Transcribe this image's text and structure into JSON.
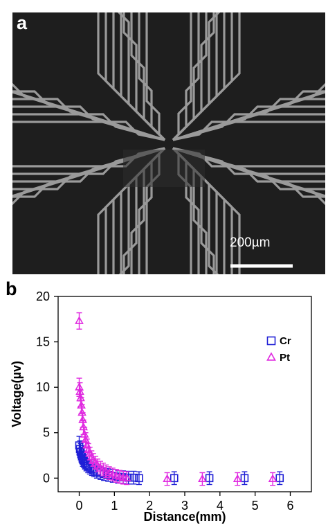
{
  "panel_a": {
    "label": "a",
    "scale_bar_label": "200µm",
    "image_kind": "microscope-photo"
  },
  "panel_b": {
    "label": "b"
  },
  "chart_data": {
    "type": "scatter",
    "xlabel": "Distance(mm)",
    "ylabel": "Voltage(µv)",
    "xlim": [
      -0.6,
      6.6
    ],
    "ylim": [
      -1.5,
      20
    ],
    "xticks": [
      0,
      1,
      2,
      3,
      4,
      5,
      6
    ],
    "yticks": [
      0,
      5,
      10,
      15,
      20
    ],
    "legend_position": "top-right",
    "grid": false,
    "series": [
      {
        "name": "Cr",
        "marker": "square",
        "color": "#1f1fd6",
        "x": [
          0.0,
          0.02,
          0.04,
          0.06,
          0.08,
          0.1,
          0.13,
          0.16,
          0.2,
          0.25,
          0.3,
          0.36,
          0.42,
          0.5,
          0.6,
          0.7,
          0.82,
          0.95,
          1.1,
          1.25,
          1.4,
          1.55,
          1.7,
          2.7,
          3.7,
          4.7,
          5.7
        ],
        "y": [
          3.6,
          3.2,
          2.9,
          2.6,
          2.4,
          2.1,
          1.9,
          1.7,
          1.5,
          1.3,
          1.15,
          1.0,
          0.85,
          0.7,
          0.55,
          0.45,
          0.35,
          0.25,
          0.15,
          0.1,
          0.05,
          0.05,
          0.0,
          0.0,
          0.0,
          0.0,
          0.0
        ],
        "error": [
          1.0,
          0.9,
          0.9,
          0.8,
          0.8,
          0.8,
          0.7,
          0.7,
          0.7,
          0.7,
          0.7,
          0.7,
          0.7,
          0.7,
          0.7,
          0.7,
          0.7,
          0.7,
          0.7,
          0.7,
          0.7,
          0.7,
          0.7,
          0.7,
          0.7,
          0.7,
          0.7
        ]
      },
      {
        "name": "Pt",
        "marker": "triangle",
        "color": "#e02ae0",
        "x": [
          0.0,
          0.0,
          0.02,
          0.04,
          0.06,
          0.08,
          0.1,
          0.12,
          0.15,
          0.18,
          0.22,
          0.26,
          0.3,
          0.35,
          0.4,
          0.46,
          0.52,
          0.6,
          0.68,
          0.76,
          0.85,
          0.95,
          1.05,
          1.15,
          1.25,
          1.35,
          2.5,
          3.5,
          4.5,
          5.5
        ],
        "y": [
          17.3,
          10.0,
          9.5,
          8.8,
          8.0,
          7.2,
          6.4,
          5.6,
          4.8,
          4.2,
          3.6,
          3.1,
          2.7,
          2.3,
          2.0,
          1.7,
          1.4,
          1.15,
          0.95,
          0.75,
          0.55,
          0.4,
          0.25,
          0.15,
          0.05,
          0.0,
          -0.1,
          -0.1,
          -0.1,
          -0.1
        ],
        "error": [
          0.9,
          1.0,
          1.0,
          0.9,
          0.9,
          0.9,
          0.8,
          0.8,
          0.8,
          0.8,
          0.7,
          0.7,
          0.7,
          0.7,
          0.7,
          0.7,
          0.7,
          0.7,
          0.7,
          0.7,
          0.7,
          0.7,
          0.7,
          0.7,
          0.7,
          0.7,
          0.7,
          0.7,
          0.7,
          0.7
        ]
      }
    ]
  }
}
